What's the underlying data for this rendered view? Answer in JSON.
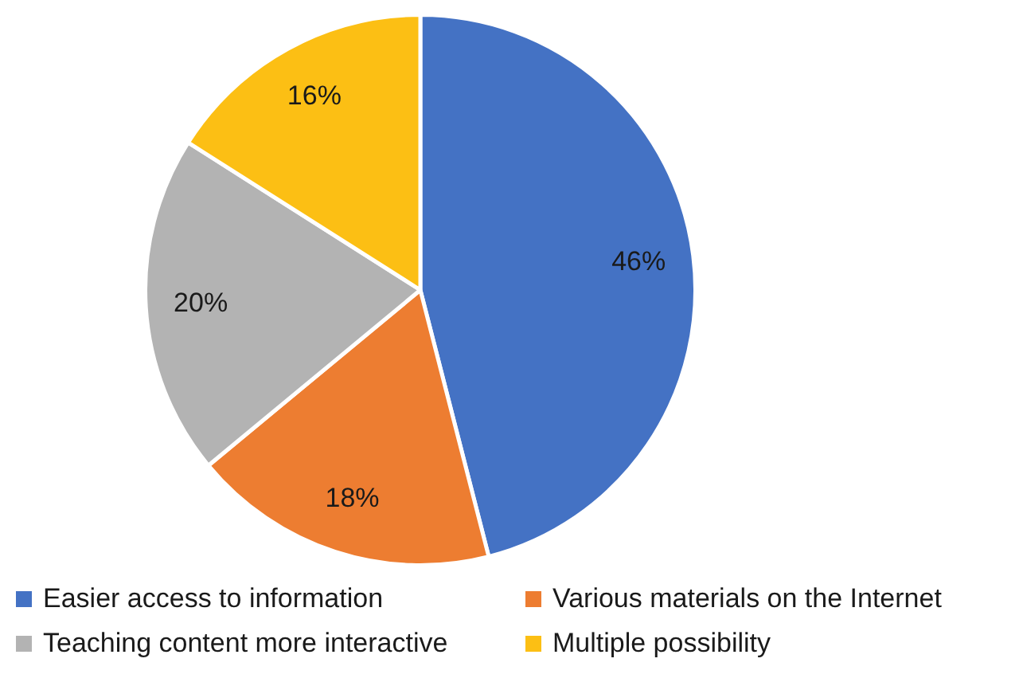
{
  "chart_data": {
    "type": "pie",
    "categories": [
      "Easier access to information",
      "Various materials on the Internet",
      "Teaching content more interactive",
      "Multiple possibility"
    ],
    "values": [
      46,
      18,
      20,
      16
    ],
    "colors": [
      "#4472c4",
      "#ed7d31",
      "#b3b3b3",
      "#fcbf14"
    ],
    "value_labels": [
      "46%",
      "18%",
      "20%",
      "16%"
    ],
    "legend": "bottom"
  }
}
